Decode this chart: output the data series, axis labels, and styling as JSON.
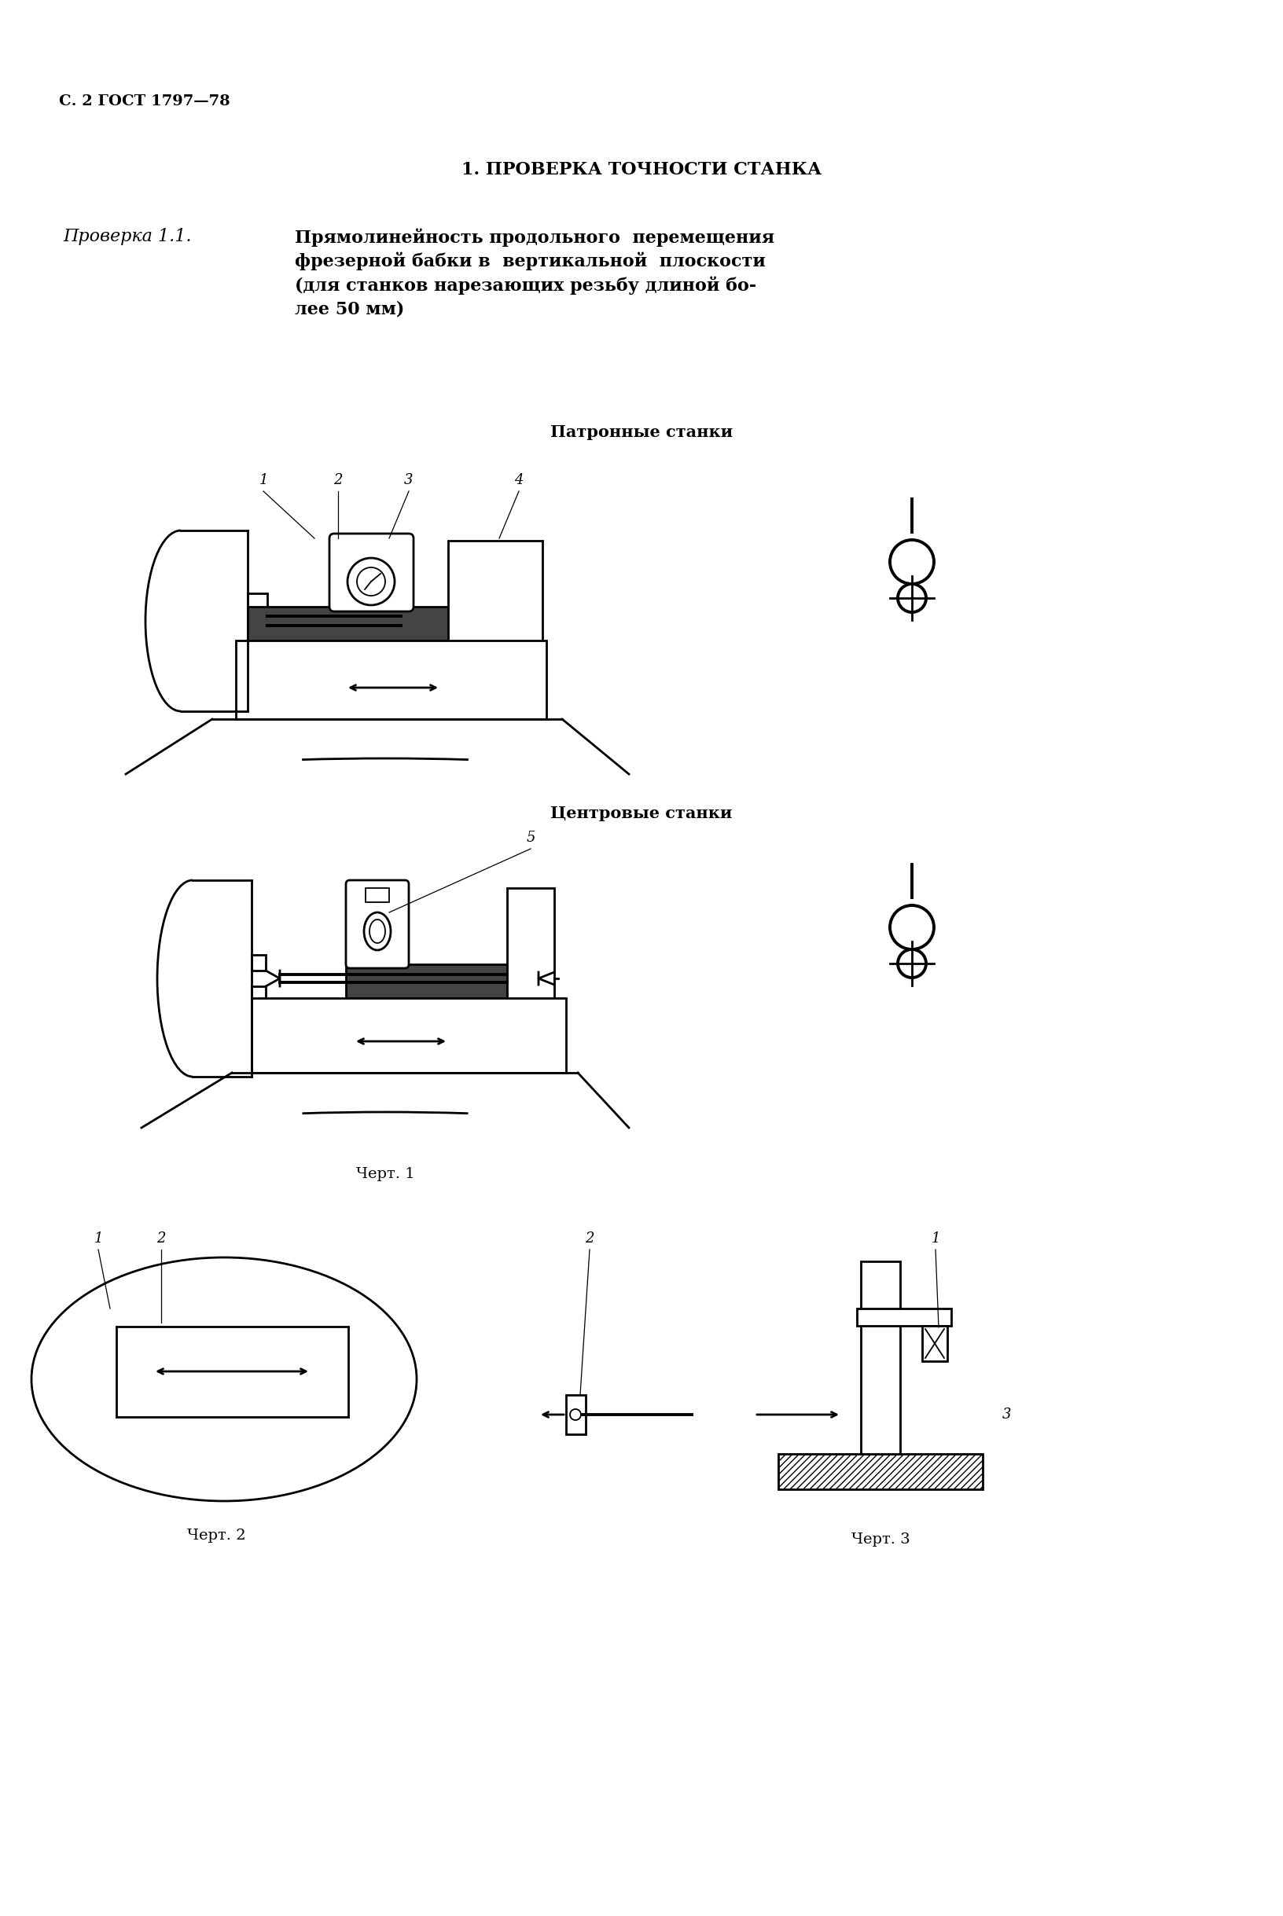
{
  "page_header": "С. 2 ГОСТ 1797—78",
  "section_title": "1. ПРОВЕРКА ТОЧНОСТИ СТАНКА",
  "check_label": "Проверка 1.1.",
  "check_title": "Прямолинейность продольного  перемещения\nфрезерной бабки в  вертикальной  плоскости\n(для станков нарезающих резьбу длиной бо-\nлее 50 мм)",
  "subtitle1": "Патронные станки",
  "subtitle2": "Центровые станки",
  "caption1": "Черт. 1",
  "caption2": "Черт. 2",
  "caption3": "Черт. 3",
  "bg_color": "#ffffff",
  "text_color": "#000000"
}
